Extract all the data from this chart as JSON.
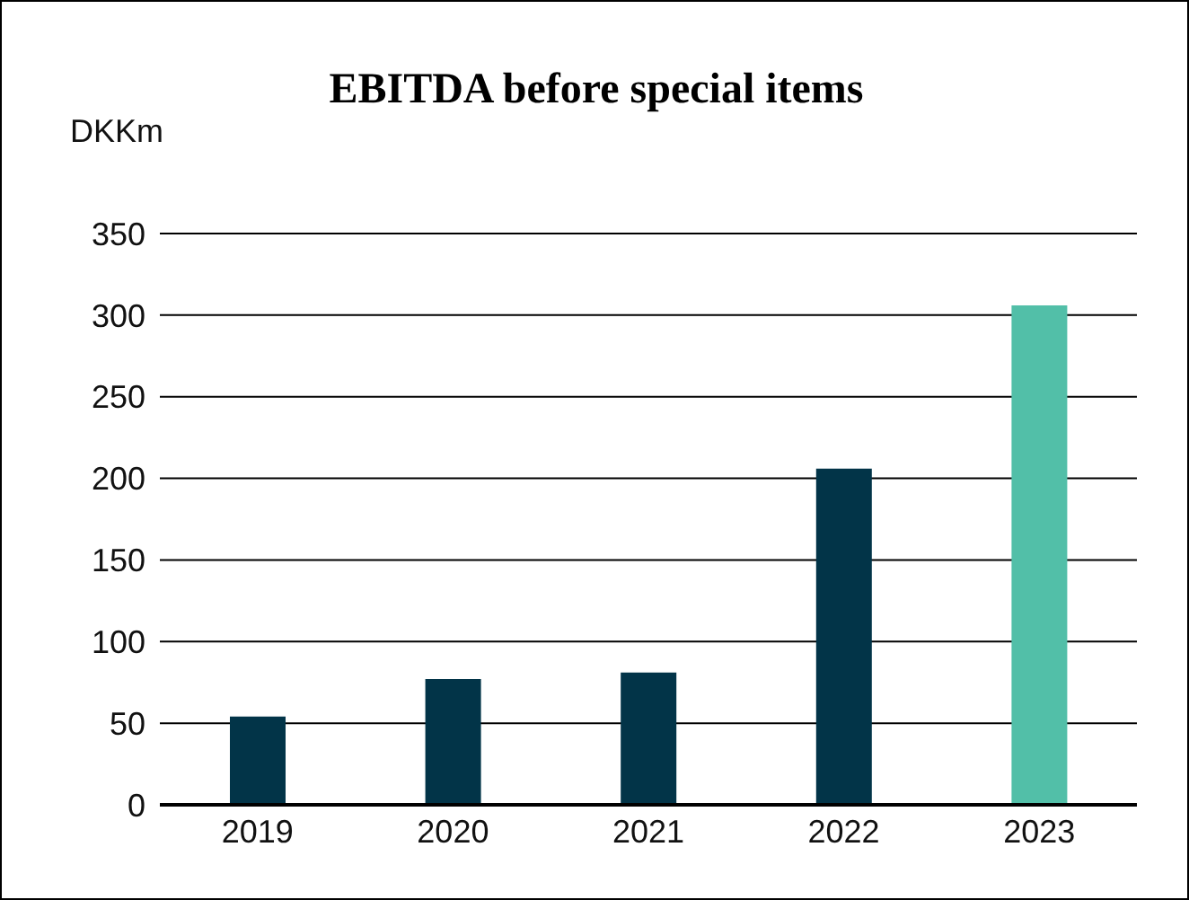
{
  "chart_data": {
    "type": "bar",
    "title": "EBITDA before special items",
    "ylabel": "DKKm",
    "categories": [
      "2019",
      "2020",
      "2021",
      "2022",
      "2023"
    ],
    "values": [
      54,
      77,
      81,
      206,
      306
    ],
    "colors": [
      "#023448",
      "#023448",
      "#023448",
      "#023448",
      "#52bfa8"
    ],
    "ylim": [
      0,
      350
    ],
    "yticks": [
      0,
      50,
      100,
      150,
      200,
      250,
      300,
      350
    ],
    "grid": "y",
    "legend": false
  }
}
